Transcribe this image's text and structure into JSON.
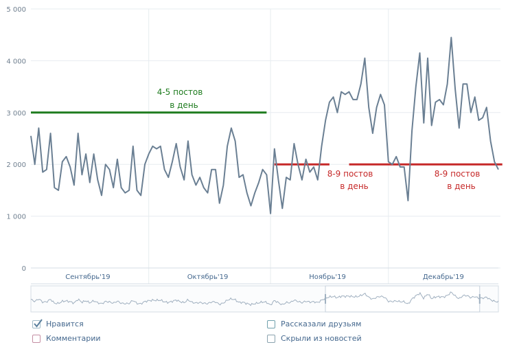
{
  "colors": {
    "line": "#6a7f93",
    "grid": "#e7ecf0",
    "annotation_green": "#1e7b1e",
    "annotation_red": "#c62828",
    "checkbox_border": "#9fbac7",
    "checkbox_comments": "#c48ea3",
    "checkbox_shares": "#6fa0ac",
    "checkbox_hidden": "#8aa2ae"
  },
  "chart_data": {
    "type": "line",
    "y_ticks": [
      "0",
      "1 000",
      "2 000",
      "3 000",
      "4 000",
      "5 000"
    ],
    "y_tick_values": [
      0,
      1000,
      2000,
      3000,
      4000,
      5000
    ],
    "ylim": [
      0,
      5000
    ],
    "months": [
      "Сентябрь'19",
      "Октябрь'19",
      "Ноябрь'19",
      "Декабрь'19"
    ],
    "month_index_ranges": [
      [
        0,
        29
      ],
      [
        30,
        60
      ],
      [
        61,
        90
      ],
      [
        91,
        120
      ]
    ],
    "series": [
      {
        "name": "Нравится",
        "values": [
          2550,
          2000,
          2700,
          1850,
          1900,
          2600,
          1550,
          1500,
          2050,
          2150,
          1950,
          1600,
          2600,
          1800,
          2200,
          1650,
          2200,
          1700,
          1400,
          2000,
          1900,
          1550,
          2100,
          1550,
          1450,
          1500,
          2350,
          1500,
          1400,
          2000,
          2200,
          2350,
          2300,
          2350,
          1900,
          1750,
          2050,
          2400,
          1950,
          1700,
          2450,
          1800,
          1600,
          1750,
          1550,
          1450,
          1900,
          1900,
          1250,
          1600,
          2350,
          2700,
          2450,
          1750,
          1800,
          1450,
          1200,
          1450,
          1650,
          1900,
          1800,
          1050,
          2300,
          1700,
          1150,
          1750,
          1700,
          2400,
          2000,
          1700,
          2100,
          1850,
          1950,
          1700,
          2350,
          2850,
          3200,
          3300,
          3000,
          3400,
          3350,
          3400,
          3250,
          3250,
          3550,
          4050,
          3100,
          2600,
          3100,
          3350,
          3150,
          2050,
          2000,
          2150,
          1950,
          1950,
          1300,
          2650,
          3500,
          4150,
          2800,
          4050,
          2750,
          3200,
          3250,
          3150,
          3550,
          4450,
          3450,
          2700,
          3550,
          3550,
          3000,
          3300,
          2850,
          2900,
          3100,
          2450,
          2050,
          1900
        ]
      }
    ],
    "annotations": [
      {
        "text_line1": "4-5 постов",
        "text_line2": "в день",
        "level": 3000,
        "from_index": 0,
        "to_index": 60,
        "color": "green"
      },
      {
        "text_line1": "8-9 постов",
        "text_line2": "в день",
        "level": 2000,
        "from_index": 62,
        "to_index": 76,
        "color": "red"
      },
      {
        "text_line1": "8-9 постов",
        "text_line2": "в день",
        "level": 2000,
        "from_index": 81,
        "to_index": 120,
        "color": "red"
      }
    ],
    "navigator_selection": [
      0.63,
      0.96
    ]
  },
  "legend": [
    {
      "label": "Нравится",
      "checked": true
    },
    {
      "label": "Комментарии",
      "checked": false
    },
    {
      "label": "Рассказали друзьям",
      "checked": false
    },
    {
      "label": "Скрыли из новостей",
      "checked": false
    }
  ]
}
